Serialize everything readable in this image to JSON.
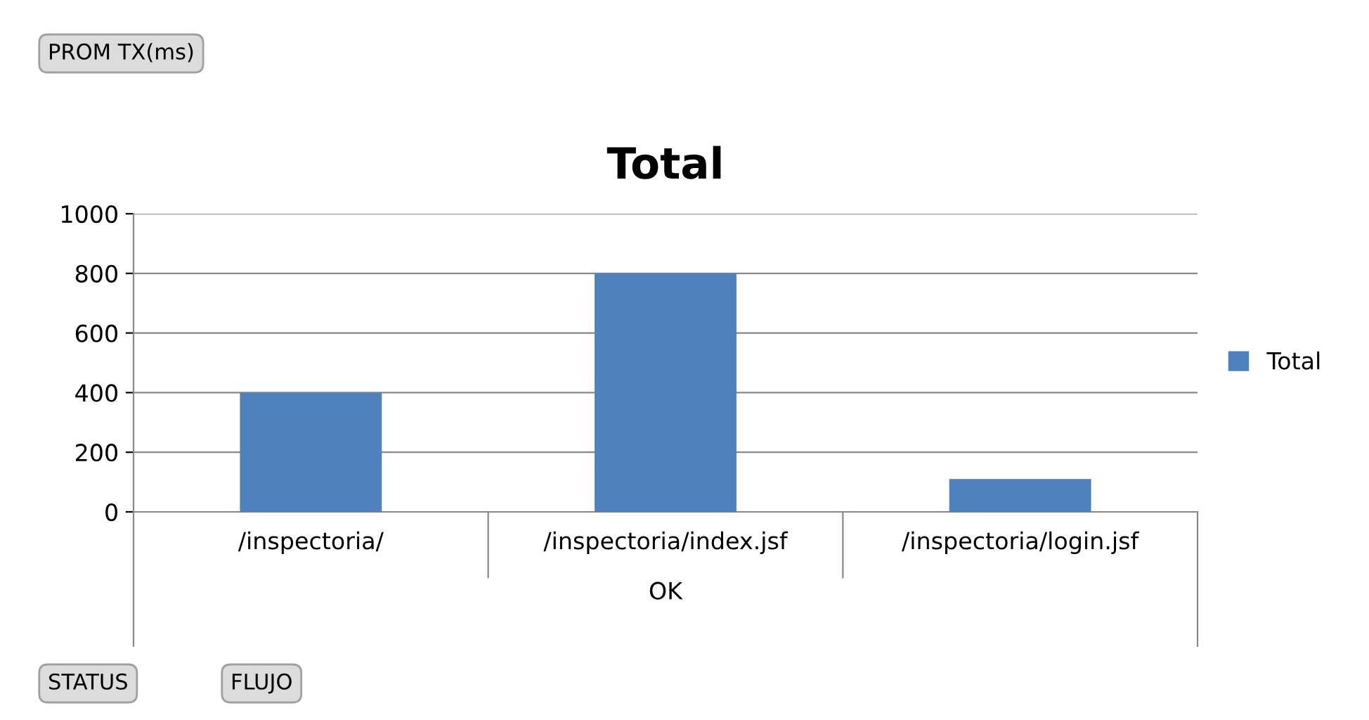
{
  "chart_data": {
    "type": "bar",
    "title": "Total",
    "xlabel": "OK",
    "categories": [
      "/inspectoria/",
      "/inspectoria/index.jsf",
      "/inspectoria/login.jsf"
    ],
    "series": [
      {
        "name": "Total",
        "color": "#4f81bd",
        "values": [
          400,
          800,
          110
        ]
      }
    ],
    "ylim": [
      0,
      1000
    ],
    "yticks": [
      0,
      200,
      400,
      600,
      800,
      1000
    ],
    "grid": "y",
    "legend": "right",
    "annotations": [
      "PROM TX(ms)",
      "STATUS",
      "FLUJO"
    ]
  }
}
